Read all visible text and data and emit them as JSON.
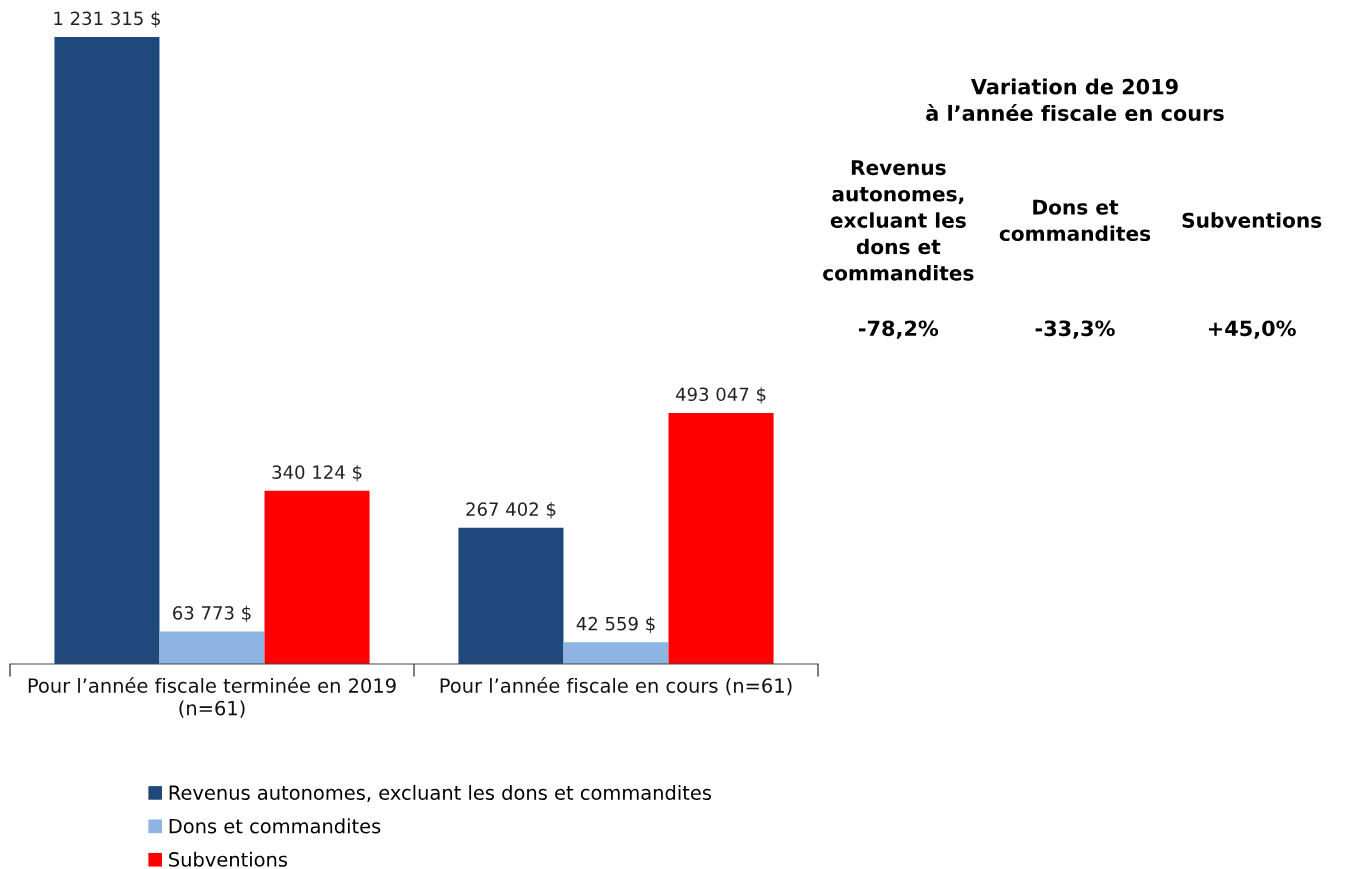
{
  "chart_data": [
    {
      "type": "bar",
      "categories": [
        "Pour l’année fiscale terminée en 2019\n(n=61)",
        "Pour l’année fiscale en cours (n=61)"
      ],
      "series": [
        {
          "name": "Revenus autonomes, excluant les dons et commandites",
          "color": "#1f497d",
          "values": [
            1231315,
            267402
          ],
          "value_labels": [
            "1 231 315 $",
            "267 402 $"
          ]
        },
        {
          "name": "Dons et commandites",
          "color": "#8eb4e3",
          "values": [
            63773,
            42559
          ],
          "value_labels": [
            "63 773 $",
            "42 559 $"
          ]
        },
        {
          "name": "Subventions",
          "color": "#ff0000",
          "values": [
            340124,
            493047
          ],
          "value_labels": [
            "340 124 $",
            "493 047 $"
          ]
        }
      ],
      "tick_labels": "x",
      "legend": "bottom"
    },
    {
      "type": "other",
      "title": "Variation de 2019\nà l’année fiscale en cours",
      "categories": [
        "Revenus\nautonomes,\nexcluant les\ndons et\ncommandites",
        "Dons et\ncommandites",
        "Subventions"
      ],
      "annotations": [
        "-78,2%",
        "-33,3%",
        "+45,0%"
      ]
    }
  ]
}
